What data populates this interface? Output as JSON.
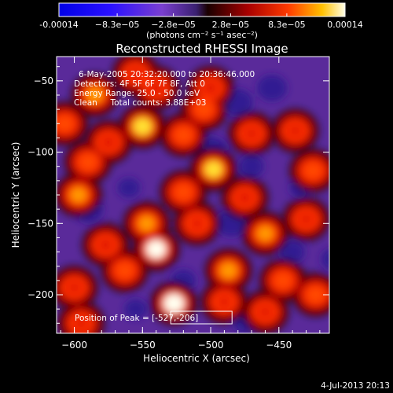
{
  "colorbar": {
    "tick_labels": [
      "-0.00014",
      "−8.3e−05",
      "−2.8e−05",
      "2.8e−05",
      "8.3e−05",
      "0.00014"
    ],
    "units_label": "(photons cm⁻² s⁻¹ asec⁻²)",
    "range": [
      -0.00014,
      0.00014
    ]
  },
  "chart_data": {
    "type": "heatmap",
    "title": "Reconstructed RHESSI Image",
    "xlabel": "Heliocentric X (arcsec)",
    "ylabel": "Heliocentric Y (arcsec)",
    "xlim": [
      -613,
      -413
    ],
    "ylim": [
      -227,
      -33
    ],
    "x_ticks": [
      -600,
      -550,
      -500,
      -450
    ],
    "x_tick_labels": [
      "−600",
      "−550",
      "−500",
      "−450"
    ],
    "y_ticks": [
      -50,
      -100,
      -150,
      -200
    ],
    "y_tick_labels": [
      "−50",
      "−100",
      "−150",
      "−200"
    ],
    "annotations": [
      "6-May-2005 20:32:20.000 to 20:36:46.000",
      "Detectors: 4F 5F 6F 7F 8F, Att 0",
      "Energy Range: 25.0 - 50.0 keV",
      "Clean     Total counts: 3.88E+03"
    ],
    "peak_label": "Position of Peak = [-527,-206]",
    "peak": [
      -527,
      -206
    ],
    "blobs": [
      {
        "x": -527,
        "y": -206,
        "v": 1.0
      },
      {
        "x": -563,
        "y": -183,
        "v": 0.65
      },
      {
        "x": -540,
        "y": -168,
        "v": 0.95
      },
      {
        "x": -547,
        "y": -150,
        "v": 0.75
      },
      {
        "x": -577,
        "y": -165,
        "v": 0.6
      },
      {
        "x": -597,
        "y": -130,
        "v": 0.75
      },
      {
        "x": -590,
        "y": -107,
        "v": 0.7
      },
      {
        "x": -575,
        "y": -93,
        "v": 0.6
      },
      {
        "x": -550,
        "y": -82,
        "v": 0.9
      },
      {
        "x": -585,
        "y": -60,
        "v": 0.75
      },
      {
        "x": -607,
        "y": -80,
        "v": 0.65
      },
      {
        "x": -520,
        "y": -88,
        "v": 0.7
      },
      {
        "x": -505,
        "y": -70,
        "v": 0.7
      },
      {
        "x": -498,
        "y": -112,
        "v": 0.85
      },
      {
        "x": -520,
        "y": -128,
        "v": 0.65
      },
      {
        "x": -475,
        "y": -132,
        "v": 0.6
      },
      {
        "x": -470,
        "y": -87,
        "v": 0.55
      },
      {
        "x": -438,
        "y": -85,
        "v": 0.55
      },
      {
        "x": -425,
        "y": -113,
        "v": 0.65
      },
      {
        "x": -460,
        "y": -157,
        "v": 0.75
      },
      {
        "x": -487,
        "y": -183,
        "v": 0.8
      },
      {
        "x": -447,
        "y": -190,
        "v": 0.65
      },
      {
        "x": -423,
        "y": -200,
        "v": 0.7
      },
      {
        "x": -430,
        "y": -147,
        "v": 0.55
      },
      {
        "x": -460,
        "y": -212,
        "v": 0.55
      },
      {
        "x": -510,
        "y": -150,
        "v": 0.5
      },
      {
        "x": -500,
        "y": -55,
        "v": 0.6
      },
      {
        "x": -540,
        "y": -55,
        "v": 0.6
      },
      {
        "x": -600,
        "y": -195,
        "v": 0.55
      },
      {
        "x": -595,
        "y": -220,
        "v": 0.55
      },
      {
        "x": -555,
        "y": -45,
        "v": 0.55
      },
      {
        "x": -490,
        "y": -205,
        "v": 0.5
      }
    ]
  },
  "footer": {
    "date": "4-Jul-2013 20:13"
  }
}
